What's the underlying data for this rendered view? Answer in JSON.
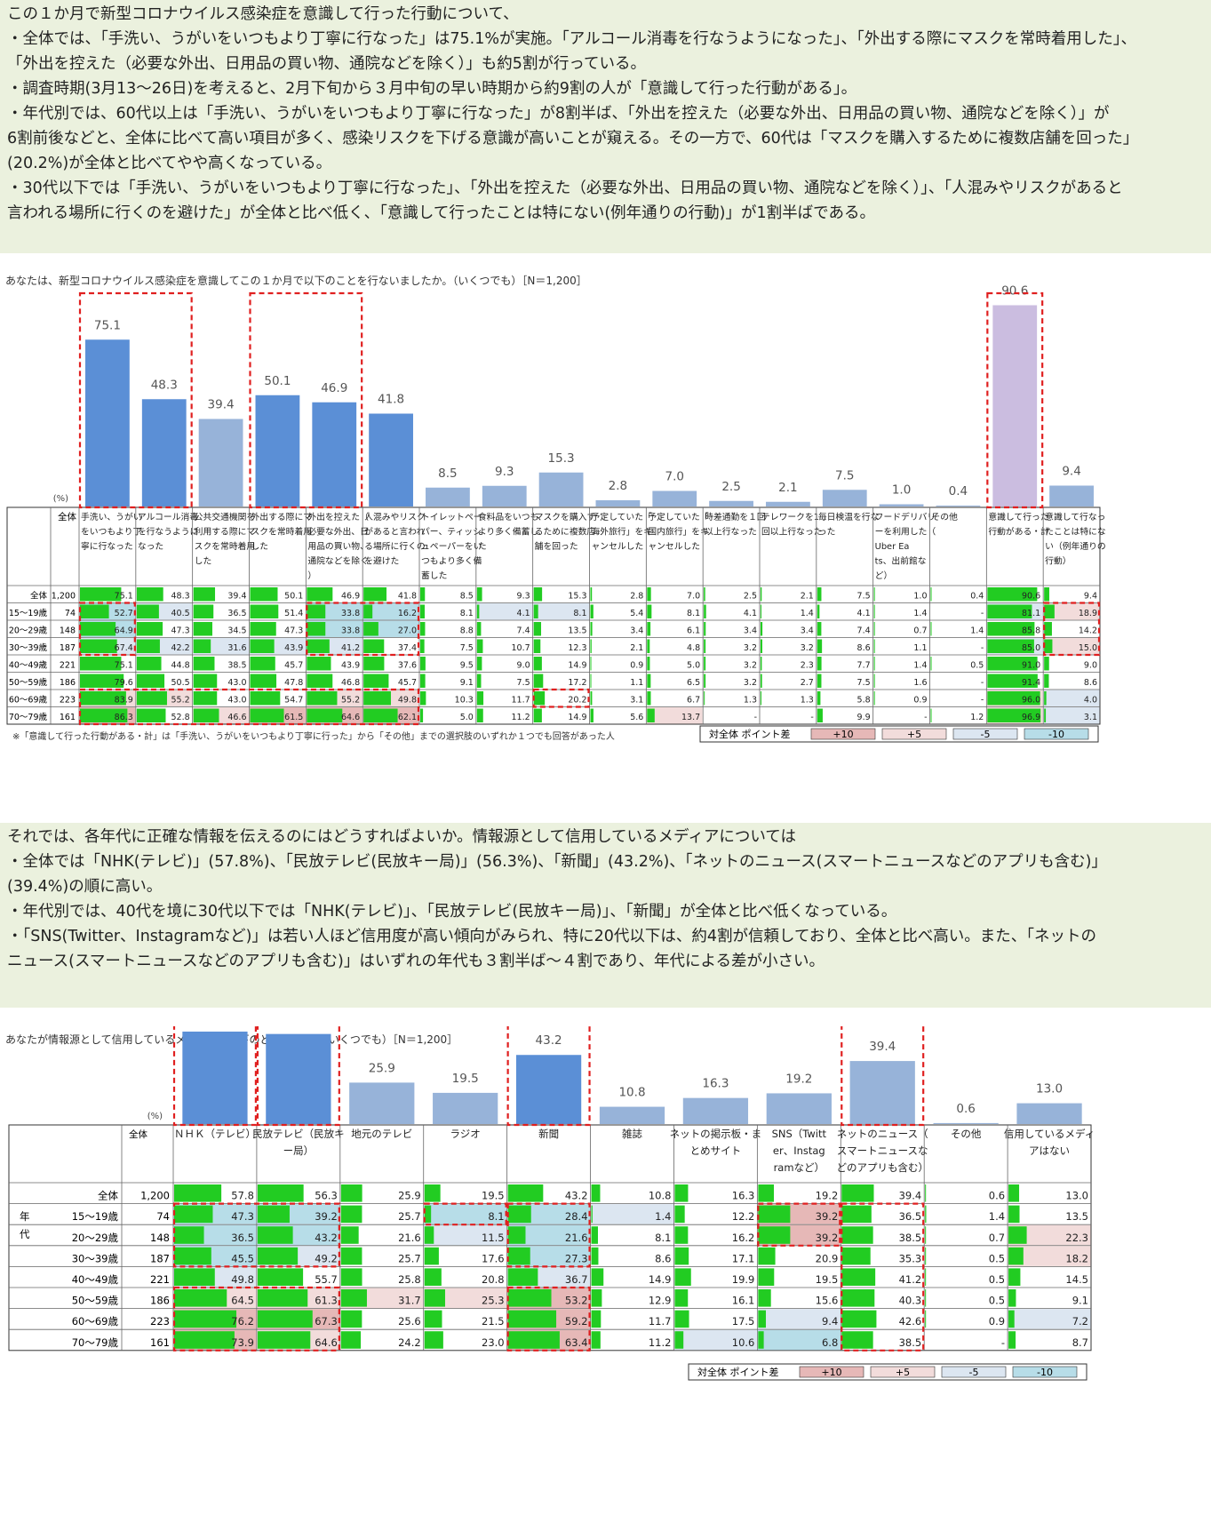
{
  "colors": {
    "bar_highlight": "#5b8fd6",
    "bar_normal": "#97b3d9",
    "bar_total": "#cbbde0",
    "mini_bar": "#22cc22",
    "pos10": "#e6b8b7",
    "pos5": "#f2dcdb",
    "neg5": "#dce6f1",
    "neg10": "#b7dde8",
    "emphasis_box": "#e02020",
    "summary_bg": "#ebf1de"
  },
  "summary1": [
    "この１か月で新型コロナウイルス感染症を意識して行った行動について、",
    "・全体では、「手洗い、うがいをいつもより丁寧に行なった」は75.1%が実施。「アルコール消毒を行なうようになった」、「外出する際にマスクを常時着用した」、",
    "「外出を控えた（必要な外出、日用品の買い物、通院などを除く）」も約5割が行っている。",
    "・調査時期(3月13～26日)を考えると、2月下旬から３月中旬の早い時期から約9割の人が「意識して行った行動がある」。",
    "・年代別では、60代以上は「手洗い、うがいをいつもより丁寧に行なった」が8割半ば、「外出を控えた（必要な外出、日用品の買い物、通院などを除く）」が",
    "6割前後などと、全体に比べて高い項目が多く、感染リスクを下げる意識が高いことが窺える。その一方で、60代は「マスクを購入するために複数店舗を回った」",
    "(20.2%)が全体と比べてやや高くなっている。",
    "・30代以下では「手洗い、うがいをいつもより丁寧に行なった」、「外出を控えた（必要な外出、日用品の買い物、通院などを除く）」、「人混みやリスクがあると",
    "言われる場所に行くのを避けた」が全体と比べ低く、「意識して行ったことは特にない(例年通りの行動)」が1割半ばである。"
  ],
  "chart1_question": "あなたは、新型コロナウイルス感染症を意識してこの１か月で以下のことを行ないましたか。（いくつでも）［N＝1,200］",
  "chart1_footnote": "※「意識して行った行動がある・計」は「手洗い、うがいをいつもより丁寧に行った」から「その他」までの選択肢のいずれか１つでも回答があった人",
  "unit_label": "(%)",
  "total_label": "全体",
  "nenndai_label": "年\n代",
  "legend": {
    "title": "対全体 ポイント差",
    "items": [
      "+10",
      "+5",
      "-5",
      "-10"
    ]
  },
  "summary2": [
    "それでは、各年代に正確な情報を伝えるのにはどうすればよいか。情報源として信用しているメディアについては",
    "・全体では「NHK(テレビ)」(57.8%)、「民放テレビ(民放キー局)」(56.3%)、「新聞」(43.2%)、「ネットのニュース(スマートニュースなどのアプリも含む)」",
    "(39.4%)の順に高い。",
    "・年代別では、40代を境に30代以下では「NHK(テレビ)」、「民放テレビ(民放キー局)」、「新聞」が全体と比べ低くなっている。",
    "・「SNS(Twitter、Instagramなど)」は若い人ほど信用度が高い傾向がみられ、特に20代以下は、約4割が信頼しており、全体と比べ高い。また、「ネットの",
    "ニュース(スマートニュースなどのアプリも含む)」はいずれの年代も３割半ば～４割であり、年代による差が小さい。"
  ],
  "chart2_question": "あなたが情報源として信用しているメディアは以下のどれですか。（いくつでも）［N＝1,200］",
  "chart_data": [
    {
      "type": "bar",
      "ylim": [
        0,
        100
      ],
      "categories": [
        "手洗い、うがいをいつもより丁寧に行なった",
        "アルコール消毒を行なうようになった",
        "公共交通機関を利用する際にマスクを常時着用した",
        "外出する際にマスクを常時着用した",
        "外出を控えた（必要な外出、日用品の買い物、通院などを除く）",
        "人混みやリスクがあると言われる場所に行くのを避けた",
        "トイレットペーパー、ティッシュペーパーをいつもより多く備蓄した",
        "食料品をいつもより多く備蓄した",
        "マスクを購入するために複数店舗を回った",
        "予定していた「海外旅行」をキャンセルした",
        "予定していた「国内旅行」をキャンセルした",
        "時差通勤を１回以上行なった",
        "テレワークを1回以上行なった",
        "毎日検温を行なった",
        "フードデリバリーを利用した（Uber Eats、出前館など）",
        "その他",
        "意識して行った行動がある・計",
        "意識して行なったことは特にない（例年通りの行動）"
      ],
      "values": [
        75.1,
        48.3,
        39.4,
        50.1,
        46.9,
        41.8,
        8.5,
        9.3,
        15.3,
        2.8,
        7.0,
        2.5,
        2.1,
        7.5,
        1.0,
        0.4,
        90.6,
        9.4
      ],
      "row_labels": [
        "全体",
        "15～19歳",
        "20～29歳",
        "30～39歳",
        "40～49歳",
        "50～59歳",
        "60～69歳",
        "70～79歳"
      ],
      "n": [
        "1,200",
        "74",
        "148",
        "187",
        "221",
        "186",
        "223",
        "161"
      ],
      "rows": [
        [
          "75.1",
          "48.3",
          "39.4",
          "50.1",
          "46.9",
          "41.8",
          "8.5",
          "9.3",
          "15.3",
          "2.8",
          "7.0",
          "2.5",
          "2.1",
          "7.5",
          "1.0",
          "0.4",
          "90.6",
          "9.4"
        ],
        [
          "52.7",
          "40.5",
          "36.5",
          "51.4",
          "33.8",
          "16.2",
          "8.1",
          "4.1",
          "8.1",
          "5.4",
          "8.1",
          "4.1",
          "1.4",
          "4.1",
          "1.4",
          "-",
          "81.1",
          "18.9"
        ],
        [
          "64.9",
          "47.3",
          "34.5",
          "47.3",
          "33.8",
          "27.0",
          "8.8",
          "7.4",
          "13.5",
          "3.4",
          "6.1",
          "3.4",
          "3.4",
          "7.4",
          "0.7",
          "1.4",
          "85.8",
          "14.2"
        ],
        [
          "67.4",
          "42.2",
          "31.6",
          "43.9",
          "41.2",
          "37.4",
          "7.5",
          "10.7",
          "12.3",
          "2.1",
          "4.8",
          "3.2",
          "3.2",
          "8.6",
          "1.1",
          "-",
          "85.0",
          "15.0"
        ],
        [
          "75.1",
          "44.8",
          "38.5",
          "45.7",
          "43.9",
          "37.6",
          "9.5",
          "9.0",
          "14.9",
          "0.9",
          "5.0",
          "3.2",
          "2.3",
          "7.7",
          "1.4",
          "0.5",
          "91.0",
          "9.0"
        ],
        [
          "79.6",
          "50.5",
          "43.0",
          "47.8",
          "46.8",
          "45.7",
          "9.1",
          "7.5",
          "17.2",
          "1.1",
          "6.5",
          "3.2",
          "2.7",
          "7.5",
          "1.6",
          "-",
          "91.4",
          "8.6"
        ],
        [
          "83.9",
          "55.2",
          "43.0",
          "54.7",
          "55.2",
          "49.8",
          "10.3",
          "11.7",
          "20.2",
          "3.1",
          "6.7",
          "1.3",
          "1.3",
          "5.8",
          "0.9",
          "-",
          "96.0",
          "4.0"
        ],
        [
          "86.3",
          "52.8",
          "46.6",
          "61.5",
          "64.6",
          "62.1",
          "5.0",
          "11.2",
          "14.9",
          "5.6",
          "13.7",
          "-",
          "-",
          "9.9",
          "-",
          "1.2",
          "96.9",
          "3.1"
        ]
      ]
    },
    {
      "type": "bar",
      "ylim": [
        0,
        100
      ],
      "categories": [
        "ＮＨＫ（テレビ）",
        "民放テレビ（民放キー局）",
        "地元のテレビ",
        "ラジオ",
        "新聞",
        "雑誌",
        "ネットの掲示板・まとめサイト",
        "SNS（Twitter、Instagramなど）",
        "ネットのニュース（スマートニュースなどのアプリも含む）",
        "その他",
        "信用しているメディアはない"
      ],
      "values": [
        57.8,
        56.3,
        25.9,
        19.5,
        43.2,
        10.8,
        16.3,
        19.2,
        39.4,
        0.6,
        13.0
      ],
      "row_labels": [
        "全体",
        "15～19歳",
        "20～29歳",
        "30～39歳",
        "40～49歳",
        "50～59歳",
        "60～69歳",
        "70～79歳"
      ],
      "n": [
        "1,200",
        "74",
        "148",
        "187",
        "221",
        "186",
        "223",
        "161"
      ],
      "rows": [
        [
          "57.8",
          "56.3",
          "25.9",
          "19.5",
          "43.2",
          "10.8",
          "16.3",
          "19.2",
          "39.4",
          "0.6",
          "13.0"
        ],
        [
          "47.3",
          "39.2",
          "25.7",
          "8.1",
          "28.4",
          "1.4",
          "12.2",
          "39.2",
          "36.5",
          "1.4",
          "13.5"
        ],
        [
          "36.5",
          "43.2",
          "21.6",
          "11.5",
          "21.6",
          "8.1",
          "16.2",
          "39.2",
          "38.5",
          "0.7",
          "22.3"
        ],
        [
          "45.5",
          "49.2",
          "25.7",
          "17.6",
          "27.3",
          "8.6",
          "17.1",
          "20.9",
          "35.3",
          "0.5",
          "18.2"
        ],
        [
          "49.8",
          "55.7",
          "25.8",
          "20.8",
          "36.7",
          "14.9",
          "19.9",
          "19.5",
          "41.2",
          "0.5",
          "14.5"
        ],
        [
          "64.5",
          "61.3",
          "31.7",
          "25.3",
          "53.2",
          "12.9",
          "16.1",
          "15.6",
          "40.3",
          "0.5",
          "9.1"
        ],
        [
          "76.2",
          "67.3",
          "25.6",
          "21.5",
          "59.2",
          "11.7",
          "17.5",
          "9.4",
          "42.6",
          "0.9",
          "7.2"
        ],
        [
          "73.9",
          "64.6",
          "24.2",
          "23.0",
          "63.4",
          "11.2",
          "10.6",
          "6.8",
          "38.5",
          "-",
          "8.7"
        ]
      ]
    }
  ]
}
